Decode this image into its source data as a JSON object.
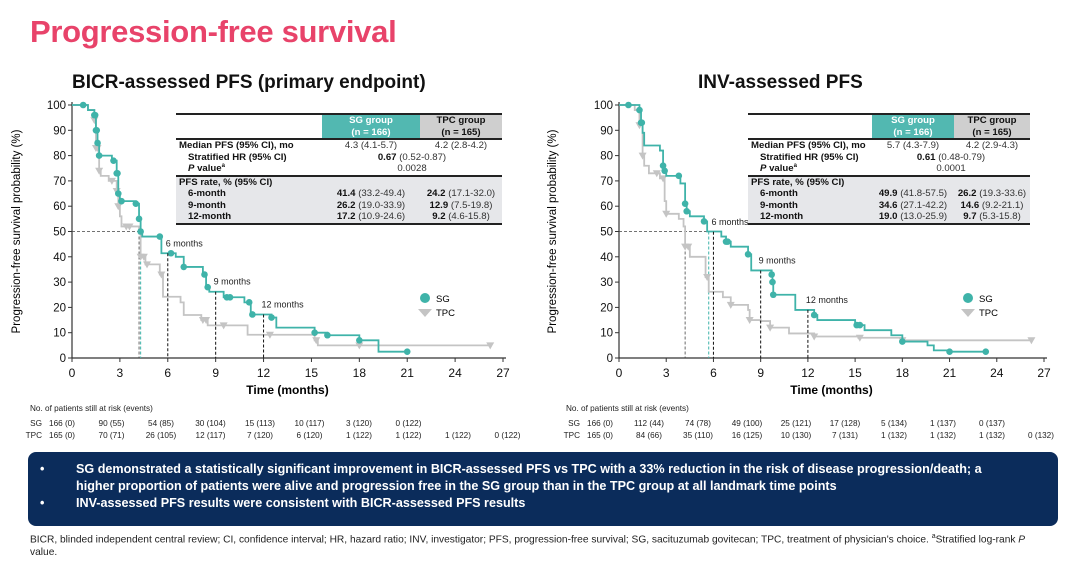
{
  "title": "Progression-free survival",
  "colors": {
    "title": "#e8436a",
    "sg": "#3fb3a9",
    "tpc": "#c4c4c4",
    "summary_bg": "#0b2c5b",
    "sg_header": "#52b8b1",
    "tpc_header": "#cfcfcf"
  },
  "legend": {
    "sg": "SG",
    "tpc": "TPC",
    "sg_marker": "circle",
    "tpc_marker": "triangle-down"
  },
  "panels": [
    {
      "title": "BICR-assessed PFS (primary endpoint)",
      "table": {
        "sg_header": "SG group",
        "sg_n": "(n = 166)",
        "tpc_header": "TPC group",
        "tpc_n": "(n = 165)",
        "median_label": "Median PFS (95% CI), mo",
        "median_sg": "4.3 (4.1-5.7)",
        "median_tpc": "4.2 (2.8-4.2)",
        "hr_label": "Stratified HR (95% CI)",
        "hr_value": "0.67",
        "hr_ci": " (0.52-0.87)",
        "p_label": "P",
        "p_label_rest": " value",
        "p_sup": "a",
        "p_value": "0.0028",
        "rate_label": "PFS rate, % (95% CI)",
        "rates": [
          {
            "label": "6-month",
            "sg": "41.4",
            "sg_ci": " (33.2-49.4)",
            "tpc": "24.2",
            "tpc_ci": " (17.1-32.0)"
          },
          {
            "label": "9-month",
            "sg": "26.2",
            "sg_ci": " (19.0-33.9)",
            "tpc": "12.9",
            "tpc_ci": " (7.5-19.8)"
          },
          {
            "label": "12-month",
            "sg": "17.2",
            "sg_ci": " (10.9-24.6)",
            "tpc": "9.2",
            "tpc_ci": " (4.6-15.8)"
          }
        ]
      },
      "risk": {
        "title": "No. of patients still at risk (events)",
        "sg_label": "SG",
        "tpc_label": "TPC",
        "sg": [
          "166 (0)",
          "90 (55)",
          "54 (85)",
          "30 (104)",
          "15 (113)",
          "10 (117)",
          "3 (120)",
          "0 (122)"
        ],
        "tpc": [
          "165 (0)",
          "70 (71)",
          "26 (105)",
          "12 (117)",
          "7 (120)",
          "6 (120)",
          "1 (122)",
          "1 (122)",
          "1 (122)",
          "0 (122)"
        ]
      }
    },
    {
      "title": "INV-assessed PFS",
      "table": {
        "sg_header": "SG group",
        "sg_n": "(n = 166)",
        "tpc_header": "TPC group",
        "tpc_n": "(n = 165)",
        "median_label": "Median PFS (95% CI), mo",
        "median_sg": "5.7 (4.3-7.9)",
        "median_tpc": "4.2 (2.9-4.3)",
        "hr_label": "Stratified HR (95% CI)",
        "hr_value": "0.61",
        "hr_ci": " (0.48-0.79)",
        "p_label": "P",
        "p_label_rest": " value",
        "p_sup": "a",
        "p_value": "0.0001",
        "rate_label": "PFS rate, % (95% CI)",
        "rates": [
          {
            "label": "6-month",
            "sg": "49.9",
            "sg_ci": " (41.8-57.5)",
            "tpc": "26.2",
            "tpc_ci": " (19.3-33.6)"
          },
          {
            "label": "9-month",
            "sg": "34.6",
            "sg_ci": " (27.1-42.2)",
            "tpc": "14.6",
            "tpc_ci": " (9.2-21.1)"
          },
          {
            "label": "12-month",
            "sg": "19.0",
            "sg_ci": " (13.0-25.9)",
            "tpc": "9.7",
            "tpc_ci": " (5.3-15.8)"
          }
        ]
      },
      "risk": {
        "title": "No. of patients still at risk (events)",
        "sg_label": "SG",
        "tpc_label": "TPC",
        "sg": [
          "166 (0)",
          "112 (44)",
          "74 (78)",
          "49 (100)",
          "25 (121)",
          "17 (128)",
          "5 (134)",
          "1 (137)",
          "0 (137)"
        ],
        "tpc": [
          "165 (0)",
          "84 (66)",
          "35 (110)",
          "16 (125)",
          "10 (130)",
          "7 (131)",
          "1 (132)",
          "1 (132)",
          "1 (132)",
          "0 (132)"
        ]
      }
    }
  ],
  "chart_data": [
    {
      "type": "line",
      "subtype": "kaplan-meier",
      "title": "BICR-assessed PFS (primary endpoint)",
      "xlabel": "Time (months)",
      "ylabel": "Progression-free survival probability (%)",
      "xlim": [
        0,
        27
      ],
      "ylim": [
        0,
        100
      ],
      "xticks": [
        0,
        3,
        6,
        9,
        12,
        15,
        18,
        21,
        24,
        27
      ],
      "yticks": [
        0,
        10,
        20,
        30,
        40,
        50,
        60,
        70,
        80,
        90,
        100
      ],
      "grid": false,
      "legend": "right",
      "medians": {
        "sg": 4.3,
        "tpc": 4.2
      },
      "landmarks": [
        {
          "t": 6,
          "label": "6 months",
          "v": 41.4
        },
        {
          "t": 9,
          "label": "9 months",
          "v": 26.2
        },
        {
          "t": 12,
          "label": "12 months",
          "v": 17.2
        }
      ],
      "series": [
        {
          "name": "SG",
          "steps": [
            [
              0,
              100
            ],
            [
              0.7,
              100
            ],
            [
              1.0,
              98
            ],
            [
              1.4,
              96
            ],
            [
              1.5,
              90
            ],
            [
              1.6,
              85
            ],
            [
              1.7,
              80
            ],
            [
              2.5,
              78
            ],
            [
              2.8,
              73
            ],
            [
              2.9,
              65
            ],
            [
              3.0,
              62
            ],
            [
              4.0,
              61
            ],
            [
              4.2,
              55
            ],
            [
              4.3,
              50
            ],
            [
              4.4,
              48
            ],
            [
              5.5,
              48
            ],
            [
              5.6,
              41.4
            ],
            [
              6.5,
              40
            ],
            [
              7.0,
              36
            ],
            [
              8.2,
              33
            ],
            [
              8.4,
              28
            ],
            [
              8.6,
              26.2
            ],
            [
              9.5,
              24
            ],
            [
              10.8,
              22
            ],
            [
              11.2,
              17.2
            ],
            [
              12.5,
              16
            ],
            [
              12.8,
              12
            ],
            [
              15.2,
              10
            ],
            [
              16.0,
              9
            ],
            [
              18.0,
              7
            ],
            [
              19.2,
              2.5
            ],
            [
              21.0,
              2.5
            ]
          ],
          "censored": [
            0.7,
            1.4,
            1.45,
            1.5,
            1.55,
            1.6,
            1.7,
            2.6,
            2.8,
            2.85,
            2.9,
            3.1,
            4.0,
            4.2,
            4.3,
            5.5,
            6.2,
            7.0,
            8.3,
            8.5,
            9.7,
            9.9,
            11.1,
            11.3,
            12.5,
            15.2,
            16.0,
            18.0,
            21.0
          ]
        },
        {
          "name": "TPC",
          "steps": [
            [
              0,
              100
            ],
            [
              1.0,
              98
            ],
            [
              1.4,
              94
            ],
            [
              1.5,
              83
            ],
            [
              1.7,
              74
            ],
            [
              1.8,
              72
            ],
            [
              2.3,
              70
            ],
            [
              2.8,
              66
            ],
            [
              2.9,
              60
            ],
            [
              3.0,
              56
            ],
            [
              3.1,
              52
            ],
            [
              4.2,
              51
            ],
            [
              4.3,
              40
            ],
            [
              4.6,
              37
            ],
            [
              5.5,
              33
            ],
            [
              5.7,
              24.2
            ],
            [
              6.8,
              22
            ],
            [
              7.0,
              17
            ],
            [
              8.1,
              15
            ],
            [
              8.5,
              12.9
            ],
            [
              11.0,
              9.2
            ],
            [
              15.2,
              7
            ],
            [
              15.4,
              5
            ],
            [
              26.2,
              5
            ]
          ],
          "censored": [
            1.4,
            1.5,
            1.6,
            1.7,
            2.5,
            2.8,
            2.9,
            3.4,
            3.6,
            4.3,
            4.5,
            4.7,
            5.6,
            8.2,
            8.4,
            9.5,
            12.4,
            15.3,
            18.0,
            26.2
          ]
        }
      ]
    },
    {
      "type": "line",
      "subtype": "kaplan-meier",
      "title": "INV-assessed PFS",
      "xlabel": "Time (months)",
      "ylabel": "Progression-free survival probability (%)",
      "xlim": [
        0,
        27
      ],
      "ylim": [
        0,
        100
      ],
      "xticks": [
        0,
        3,
        6,
        9,
        12,
        15,
        18,
        21,
        24,
        27
      ],
      "yticks": [
        0,
        10,
        20,
        30,
        40,
        50,
        60,
        70,
        80,
        90,
        100
      ],
      "grid": false,
      "legend": "right",
      "medians": {
        "sg": 5.7,
        "tpc": 4.2
      },
      "landmarks": [
        {
          "t": 6,
          "label": "6 months",
          "v": 49.9
        },
        {
          "t": 9,
          "label": "9 months",
          "v": 34.6
        },
        {
          "t": 12,
          "label": "12 months",
          "v": 19.0
        }
      ],
      "series": [
        {
          "name": "SG",
          "steps": [
            [
              0,
              100
            ],
            [
              1.0,
              100
            ],
            [
              1.3,
              98
            ],
            [
              1.4,
              93
            ],
            [
              1.5,
              89
            ],
            [
              1.6,
              84
            ],
            [
              2.6,
              82
            ],
            [
              2.8,
              76
            ],
            [
              2.9,
              74
            ],
            [
              3.0,
              72
            ],
            [
              3.9,
              69
            ],
            [
              4.2,
              61
            ],
            [
              4.3,
              58
            ],
            [
              4.5,
              56
            ],
            [
              5.4,
              54
            ],
            [
              5.6,
              50
            ],
            [
              6.5,
              48
            ],
            [
              6.8,
              46
            ],
            [
              7.1,
              44
            ],
            [
              8.2,
              41
            ],
            [
              8.4,
              34.6
            ],
            [
              9.7,
              33
            ],
            [
              9.75,
              30
            ],
            [
              9.8,
              25
            ],
            [
              11.2,
              19
            ],
            [
              12.4,
              17
            ],
            [
              12.6,
              15
            ],
            [
              15.0,
              13
            ],
            [
              15.6,
              11
            ],
            [
              17.3,
              9
            ],
            [
              18.0,
              6.5
            ],
            [
              19.6,
              5
            ],
            [
              20.0,
              3
            ],
            [
              21.0,
              2.5
            ],
            [
              23.3,
              2.5
            ]
          ],
          "censored": [
            0.6,
            1.3,
            1.4,
            1.45,
            2.8,
            2.9,
            3.8,
            4.2,
            4.3,
            5.4,
            6.8,
            6.9,
            8.2,
            9.7,
            9.75,
            9.8,
            12.4,
            15.1,
            15.3,
            18.0,
            21.0,
            23.3
          ]
        },
        {
          "name": "TPC",
          "steps": [
            [
              0,
              100
            ],
            [
              1.0,
              98
            ],
            [
              1.3,
              92
            ],
            [
              1.5,
              80
            ],
            [
              1.6,
              76
            ],
            [
              1.9,
              73
            ],
            [
              2.6,
              71
            ],
            [
              2.9,
              62
            ],
            [
              3.0,
              57
            ],
            [
              3.8,
              55
            ],
            [
              4.1,
              52
            ],
            [
              4.2,
              44
            ],
            [
              4.5,
              40
            ],
            [
              5.5,
              32
            ],
            [
              5.7,
              26.2
            ],
            [
              6.6,
              24
            ],
            [
              7.1,
              21
            ],
            [
              8.2,
              19
            ],
            [
              8.3,
              15
            ],
            [
              9.0,
              14.6
            ],
            [
              9.6,
              12
            ],
            [
              10.8,
              9.7
            ],
            [
              12.4,
              8.5
            ],
            [
              15.2,
              8
            ],
            [
              18.0,
              7
            ],
            [
              26.2,
              7
            ]
          ],
          "censored": [
            1.3,
            1.5,
            2.4,
            2.8,
            3.0,
            4.2,
            4.4,
            5.6,
            7.1,
            8.3,
            9.6,
            12.4,
            15.3,
            18.0,
            26.2
          ]
        }
      ]
    }
  ],
  "summary": {
    "bullets": [
      "SG demonstrated a statistically significant improvement in BICR-assessed PFS vs TPC with a 33% reduction in the risk of disease progression/death; a higher proportion of patients were alive and progression free in the SG group than in the TPC group at all landmark time points",
      "INV-assessed PFS results were consistent with BICR-assessed PFS results"
    ],
    "bullet_char": "•"
  },
  "footnote": {
    "text": "BICR, blinded independent central review; CI, confidence interval; HR, hazard ratio; INV, investigator; PFS, progression-free survival; SG, sacituzumab govitecan; TPC, treatment of physician's choice. ",
    "sup": "a",
    "rest1": "Stratified log-rank ",
    "p": "P",
    "rest2": " value."
  }
}
